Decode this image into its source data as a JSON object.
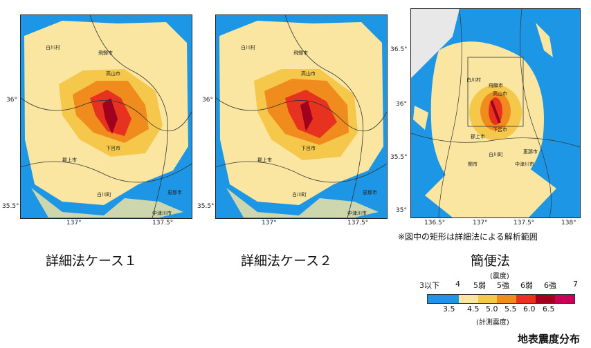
{
  "maps": [
    {
      "caption": "詳細法ケース１",
      "y_ticks": [
        "36°",
        "35.5°"
      ],
      "x_ticks": [
        "137°",
        "137.5°"
      ],
      "cities": [
        "白川村",
        "飛騨市",
        "高山市",
        "下呂市",
        "郡上市",
        "白川町",
        "恵那市",
        "中津川市"
      ]
    },
    {
      "caption": "詳細法ケース２",
      "y_ticks": [
        "36°",
        "35.5°"
      ],
      "x_ticks": [
        "137°",
        "137.5°"
      ],
      "cities": [
        "白川村",
        "飛騨市",
        "高山市",
        "下呂市",
        "郡上市",
        "白川町",
        "恵那市",
        "中津川市"
      ]
    },
    {
      "caption": "簡便法",
      "y_ticks": [
        "36.5°",
        "36°",
        "35.5°",
        "35°"
      ],
      "x_ticks": [
        "136.5°",
        "137°",
        "137.5°",
        "138°"
      ],
      "cities": [
        "白川村",
        "飛騨市",
        "高山市",
        "下呂市",
        "郡上市",
        "白川町",
        "関市",
        "恵那市",
        "中津川市"
      ]
    }
  ],
  "note": "※図中の矩形は詳細法による解析範囲",
  "legend": {
    "title_top": "(震度)",
    "intensity_labels": [
      "3以下",
      "4",
      "5弱",
      "5強",
      "6弱",
      "6強",
      "7"
    ],
    "colors": [
      "#1e96e6",
      "#fae6a0",
      "#f5c84b",
      "#f08c1e",
      "#e6321e",
      "#a0001e",
      "#c8005a"
    ],
    "measured_labels": [
      "3.5",
      "4.5",
      "5.0",
      "5.5",
      "6.0",
      "6.5"
    ],
    "title_bottom": "(計測震度)"
  },
  "footer": "地表震度分布"
}
